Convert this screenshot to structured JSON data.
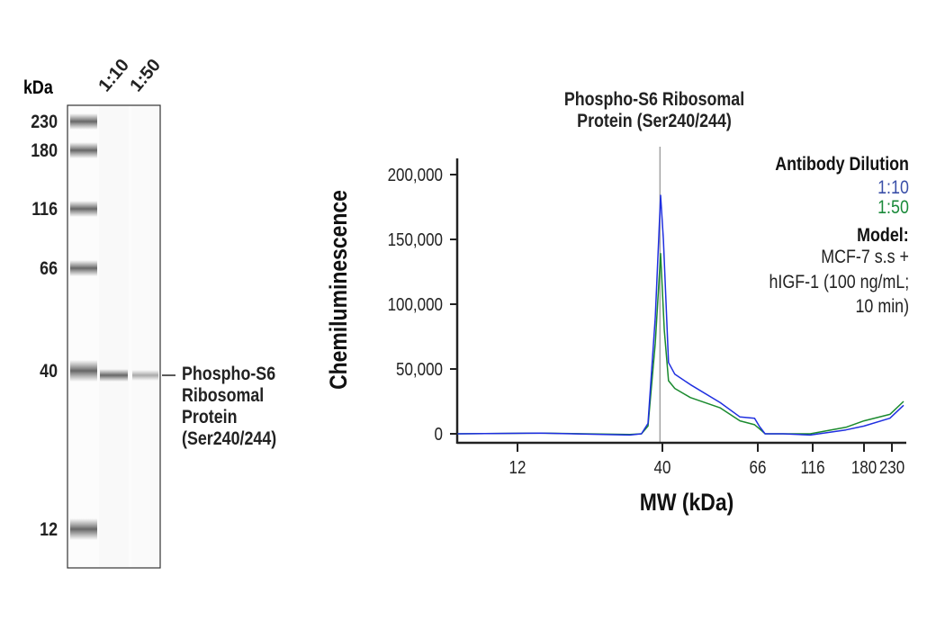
{
  "blot": {
    "unit_label": "kDa",
    "lanes": [
      "1:10",
      "1:50"
    ],
    "markers": [
      "230",
      "180",
      "116",
      "66",
      "40",
      "12"
    ],
    "band_label": [
      "Phospho-S6",
      "Ribosomal",
      "Protein",
      "(Ser240/244)"
    ],
    "band_intensity": {
      "1:10": "strong",
      "1:50": "weaker"
    }
  },
  "chart_data": {
    "type": "line",
    "title": [
      "Phospho-S6 Ribosomal",
      "Protein (Ser240/244)"
    ],
    "xlabel": "MW (kDa)",
    "ylabel": "Chemiluminescence",
    "x_ticks": [
      12,
      40,
      66,
      116,
      180,
      230
    ],
    "x_tick_labels": [
      "12",
      "40",
      "66",
      "116",
      "180",
      "230"
    ],
    "y_ticks": [
      0,
      50000,
      100000,
      150000,
      200000
    ],
    "y_tick_labels": [
      "0",
      "50,000",
      "100,000",
      "150,000",
      "200,000"
    ],
    "xlim": [
      7.3,
      261
    ],
    "ylim": [
      -7000,
      222000
    ],
    "reference_line_mw": 39.2,
    "grid": false,
    "legend": {
      "title": "Antibody Dilution",
      "placement": "top-right",
      "model_title": "Model:",
      "model_lines": [
        "MCF-7 s.s +",
        "hIGF-1 (100 ng/mL;",
        "10 min)"
      ]
    },
    "series": [
      {
        "name": "1:10",
        "color": "#1f2fe0",
        "points": [
          [
            7.3,
            0
          ],
          [
            14.5,
            500
          ],
          [
            30.5,
            -1000
          ],
          [
            33.6,
            0
          ],
          [
            35.5,
            8000
          ],
          [
            37.7,
            90000
          ],
          [
            39.4,
            184000
          ],
          [
            40.2,
            150000
          ],
          [
            41.3,
            55000
          ],
          [
            42.7,
            46000
          ],
          [
            46.3,
            38000
          ],
          [
            54.2,
            24000
          ],
          [
            60.1,
            13000
          ],
          [
            64.9,
            12000
          ],
          [
            67,
            6000
          ],
          [
            71.1,
            0
          ],
          [
            85.5,
            0
          ],
          [
            113,
            -1000
          ],
          [
            154,
            3000
          ],
          [
            180,
            6000
          ],
          [
            226,
            12000
          ],
          [
            255,
            22000
          ]
        ]
      },
      {
        "name": "1:50",
        "color": "#1a8a2e",
        "points": [
          [
            7.3,
            0
          ],
          [
            14.5,
            500
          ],
          [
            30.5,
            -500
          ],
          [
            33.6,
            0
          ],
          [
            35.5,
            6000
          ],
          [
            37.7,
            70000
          ],
          [
            39.4,
            139000
          ],
          [
            40.4,
            80000
          ],
          [
            41.3,
            41000
          ],
          [
            42.7,
            35000
          ],
          [
            46.3,
            28000
          ],
          [
            54.2,
            20000
          ],
          [
            60.1,
            10000
          ],
          [
            64.9,
            7000
          ],
          [
            67,
            4000
          ],
          [
            71.1,
            0
          ],
          [
            85.5,
            0
          ],
          [
            113,
            0
          ],
          [
            154,
            5000
          ],
          [
            180,
            10000
          ],
          [
            226,
            15000
          ],
          [
            255,
            25000
          ]
        ]
      }
    ],
    "legend_colors": {
      "1:10": "#3a4fa8",
      "1:50": "#1a8a3a"
    }
  }
}
